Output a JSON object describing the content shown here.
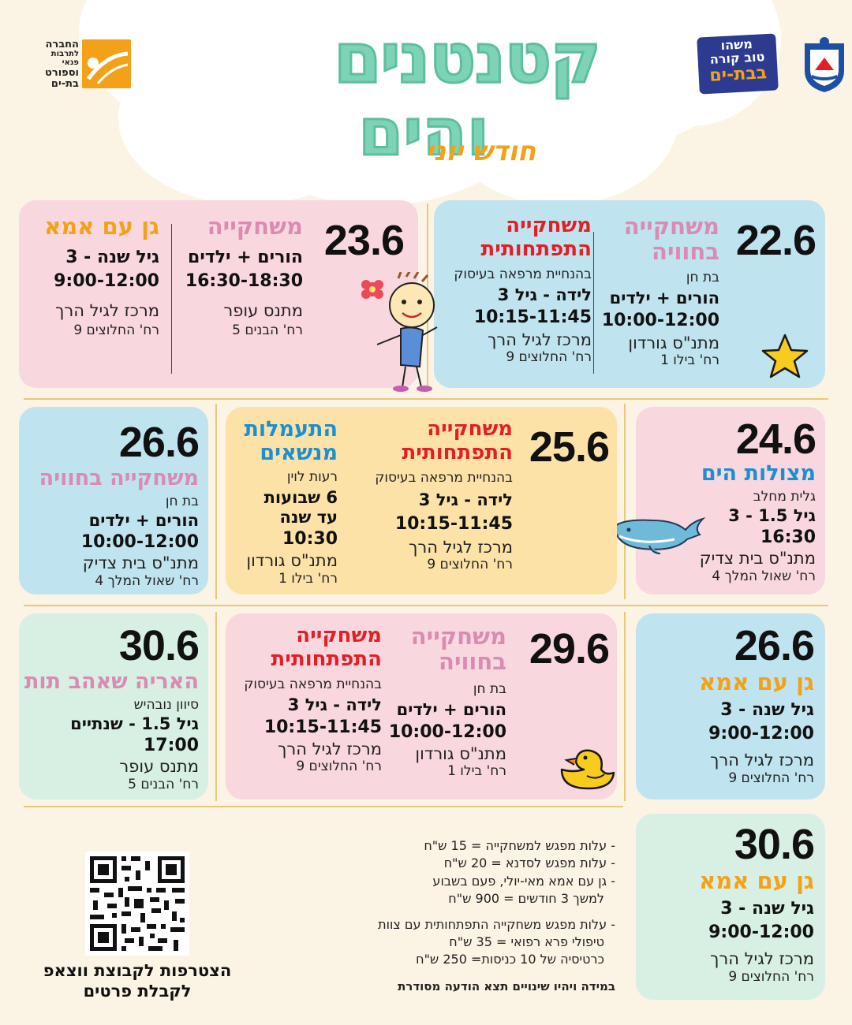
{
  "header": {
    "title_line1": "קטנטנים",
    "title_line2": "והים",
    "subtitle": "חודש יוני",
    "logo_right_text": [
      "משהו",
      "טוב קורה",
      "בבת-ים"
    ],
    "logo_left_text": [
      "החברה",
      "לתרבות פנאי",
      "וספורט",
      "בת-ים"
    ]
  },
  "colors": {
    "background": "#fbf3e3",
    "blue_card": "#bfe3ef",
    "pink_card": "#f9d7df",
    "yellow_card": "#fde2a7",
    "mint_card": "#d8efe3",
    "title_green": "#7dd3b5",
    "accent_red": "#e31e25",
    "accent_orange": "#f4a11a",
    "accent_pink": "#d98bb3",
    "accent_blue": "#1c8fd1"
  },
  "cards": {
    "c226": {
      "date": "22.6",
      "a": {
        "t1": "משחקייה",
        "t2": "בחוויה",
        "host": "בת חן",
        "aud": "הורים + ילדים",
        "time": "10:00-12:00",
        "loc": "מתנ\"ס גורדון",
        "st": "רח' בילו 1"
      },
      "b": {
        "t1": "משחקייה",
        "t2": "התפתחותית",
        "host": "בהנחיית מרפאה בעיסוק",
        "aud": "לידה - גיל 3",
        "time": "10:15-11:45",
        "loc": "מרכז לגיל הרך",
        "st": "רח' החלוצים 9"
      }
    },
    "c236": {
      "date": "23.6",
      "a": {
        "t1": "משחקייה",
        "aud": "הורים + ילדים",
        "time": "16:30-18:30",
        "loc": "מתנס עופר",
        "st": "רח' הבנים 5"
      },
      "b": {
        "t1": "גן עם אמא",
        "aud": "גיל שנה - 3",
        "time": "9:00-12:00",
        "loc": "מרכז לגיל הרך",
        "st": "רח' החלוצים 9"
      }
    },
    "c246": {
      "date": "24.6",
      "a": {
        "t1": "מצולות הים",
        "host": "גלית מחלב",
        "aud": "גיל 1.5 - 3",
        "time": "16:30",
        "loc": "מתנ\"ס בית צדיק",
        "st": "רח' שאול המלך 4"
      }
    },
    "c256": {
      "date": "25.6",
      "a": {
        "t1": "משחקייה",
        "t2": "התפתחותית",
        "host": "בהנחיית מרפאה בעיסוק",
        "aud": "לידה - גיל 3",
        "time": "10:15-11:45",
        "loc": "מרכז לגיל הרך",
        "st": "רח' החלוצים 9"
      },
      "b": {
        "t1": "התעמלות",
        "t2": "מנשאים",
        "host": "רעות לוין",
        "aud": "6 שבועות",
        "aud2": "עד שנה",
        "time": "10:30",
        "loc": "מתנ\"ס גורדון",
        "st": "רח' בילו 1"
      }
    },
    "c266a": {
      "date": "26.6",
      "a": {
        "t1": "משחקייה בחוויה",
        "host": "בת חן",
        "aud": "הורים + ילדים",
        "time": "10:00-12:00",
        "loc": "מתנ\"ס בית צדיק",
        "st": "רח' שאול המלך 4"
      }
    },
    "c266b": {
      "date": "26.6",
      "a": {
        "t1": "גן עם אמא",
        "aud": "גיל שנה - 3",
        "time": "9:00-12:00",
        "loc": "מרכז לגיל הרך",
        "st": "רח' החלוצים 9"
      }
    },
    "c296": {
      "date": "29.6",
      "a": {
        "t1": "משחקייה",
        "t2": "בחוויה",
        "host": "בת חן",
        "aud": "הורים + ילדים",
        "time": "10:00-12:00",
        "loc": "מתנ\"ס גורדון",
        "st": "רח' בילו 1"
      },
      "b": {
        "t1": "משחקייה",
        "t2": "התפתחותית",
        "host": "בהנחיית מרפאה בעיסוק",
        "aud": "לידה - גיל 3",
        "time": "10:15-11:45",
        "loc": "מרכז לגיל הרך",
        "st": "רח' החלוצים 9"
      }
    },
    "c306a": {
      "date": "30.6",
      "a": {
        "t1": "האריה שאהב תות",
        "host": "סיוון נובהיש",
        "aud": "גיל 1.5 - שנתיים",
        "time": "17:00",
        "loc": "מתנס עופר",
        "st": "רח' הבנים 5"
      }
    },
    "c306b": {
      "date": "30.6",
      "a": {
        "t1": "גן עם אמא",
        "aud": "גיל שנה - 3",
        "time": "9:00-12:00",
        "loc": "מרכז לגיל הרך",
        "st": "רח' החלוצים 9"
      }
    }
  },
  "prices": {
    "lines1": [
      "- עלות מפגש למשחקייה = 15 ש\"ח",
      "- עלות מפגש לסדנא = 20 ש\"ח",
      "- גן עם אמא מאי-יולי, פעם בשבוע",
      "למשך 3 חודשים = 900 ש\"ח"
    ],
    "lines2": [
      "- עלות מפגש משחקייה התפתחותית עם צוות",
      "טיפולי פרא רפואי = 35 ש\"ח",
      "כרטיסיה של 10 כניסות= 250 ש\"ח"
    ],
    "note": "במידה ויהיו שינויים תצא הודעה מסודרת"
  },
  "qr": {
    "caption1": "הצטרפות לקבוצת ווצאפ",
    "caption2": "לקבלת פרטים"
  }
}
